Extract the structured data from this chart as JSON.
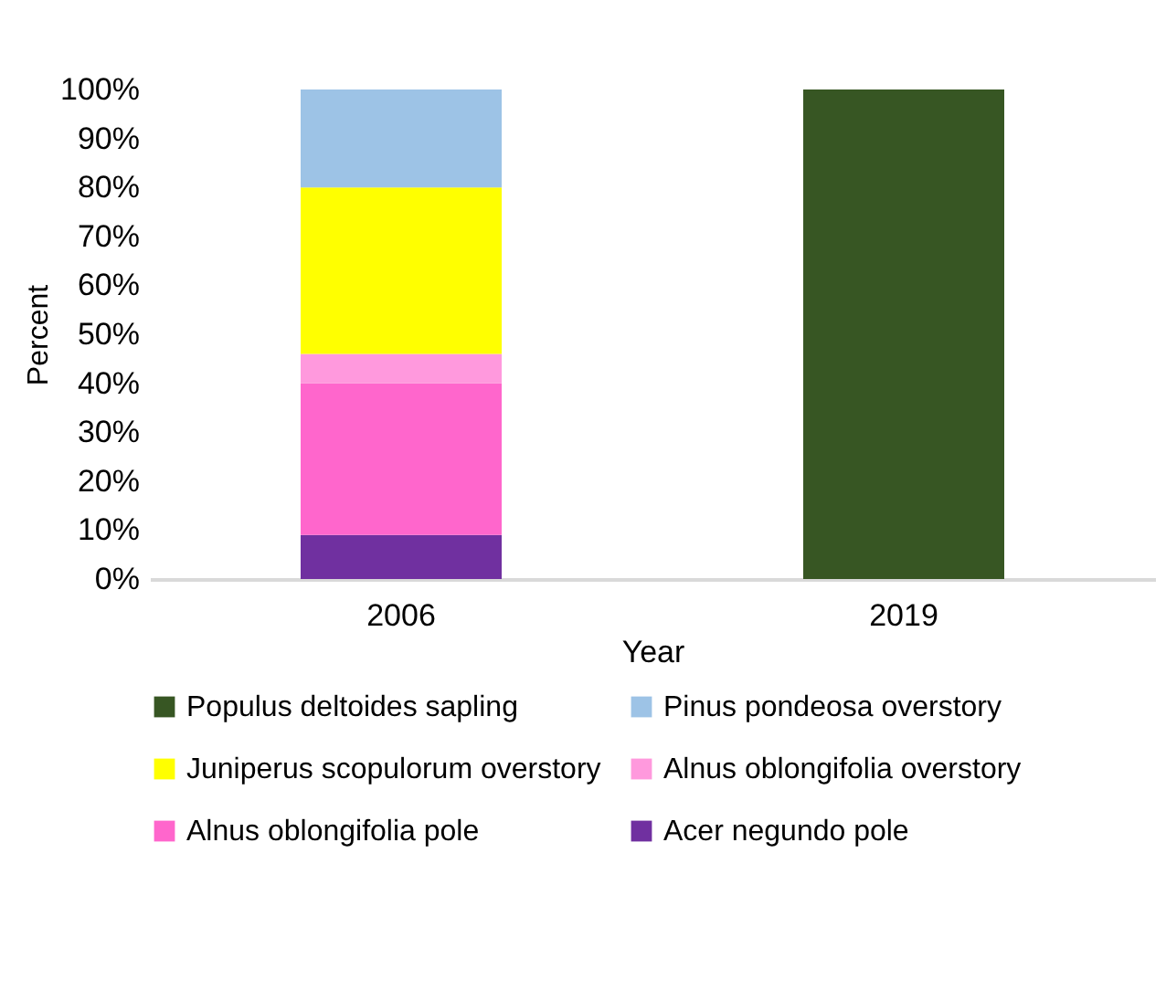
{
  "chart_data": {
    "type": "bar",
    "stacked": true,
    "xlabel": "Year",
    "ylabel": "Percent",
    "categories": [
      "2006",
      "2019"
    ],
    "series": [
      {
        "name": "Acer negundo pole",
        "color": "#7030a0",
        "values": [
          9,
          0
        ]
      },
      {
        "name": "Alnus oblongifolia pole",
        "color": "#ff66cc",
        "values": [
          31,
          0
        ]
      },
      {
        "name": "Alnus oblongifolia overstory",
        "color": "#ff99dd",
        "values": [
          6,
          0
        ]
      },
      {
        "name": "Juniperus scopulorum overstory",
        "color": "#ffff00",
        "values": [
          34,
          0
        ]
      },
      {
        "name": "Pinus pondeosa overstory",
        "color": "#9dc3e6",
        "values": [
          20,
          0
        ]
      },
      {
        "name": "Populus deltoides sapling",
        "color": "#375623",
        "values": [
          0,
          100
        ]
      }
    ],
    "ylim": [
      0,
      100
    ],
    "yticks": [
      {
        "value": 0,
        "label": "0%"
      },
      {
        "value": 10,
        "label": "10%"
      },
      {
        "value": 20,
        "label": "20%"
      },
      {
        "value": 30,
        "label": "30%"
      },
      {
        "value": 40,
        "label": "40%"
      },
      {
        "value": 50,
        "label": "50%"
      },
      {
        "value": 60,
        "label": "60%"
      },
      {
        "value": 70,
        "label": "70%"
      },
      {
        "value": 80,
        "label": "80%"
      },
      {
        "value": 90,
        "label": "90%"
      },
      {
        "value": 100,
        "label": "100%"
      }
    ],
    "grid": false,
    "legend": "bottom"
  }
}
